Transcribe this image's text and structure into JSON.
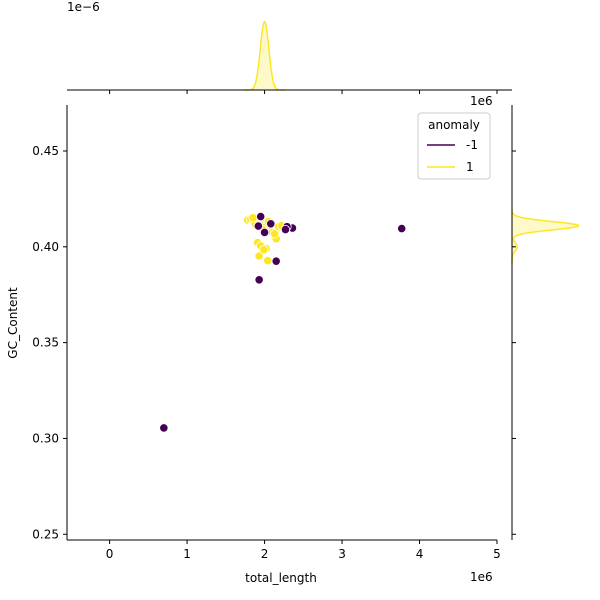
{
  "chart_data": {
    "type": "scatter",
    "kind": "jointplot",
    "xlabel": "total_length",
    "ylabel": "GC_Content",
    "x_offset_label": "1e6",
    "y_offset_label_top_margin": "1e−6",
    "x_offset_label_top_margin": "1e6",
    "xlim": [
      -0.55,
      5.0
    ],
    "ylim": [
      0.247,
      0.474
    ],
    "x_ticks": [
      0,
      1,
      2,
      3,
      4,
      5
    ],
    "x_tick_labels": [
      "0",
      "1",
      "2",
      "3",
      "4",
      "5"
    ],
    "y_ticks": [
      0.25,
      0.3,
      0.35,
      0.4,
      0.45
    ],
    "y_tick_labels": [
      "0.25",
      "0.30",
      "0.35",
      "0.40",
      "0.45"
    ],
    "legend": {
      "title": "anomaly",
      "placement": "top-right",
      "entries": [
        {
          "label": "-1",
          "color": "#440154"
        },
        {
          "label": "1",
          "color": "#fde725"
        }
      ]
    },
    "series": [
      {
        "name": "-1",
        "color": "#440154",
        "points": [
          [
            0.7,
            0.3055
          ],
          [
            1.93,
            0.3828
          ],
          [
            2.15,
            0.3925
          ],
          [
            3.77,
            0.4095
          ],
          [
            2.36,
            0.4098
          ],
          [
            2.29,
            0.4105
          ],
          [
            2.27,
            0.409
          ],
          [
            1.95,
            0.4158
          ],
          [
            1.92,
            0.4108
          ],
          [
            2.08,
            0.412
          ],
          [
            2.0,
            0.4075
          ]
        ]
      },
      {
        "name": "1",
        "color": "#fde725",
        "points": [
          [
            1.78,
            0.414
          ],
          [
            1.82,
            0.4145
          ],
          [
            1.86,
            0.4135
          ],
          [
            1.9,
            0.413
          ],
          [
            1.94,
            0.4128
          ],
          [
            1.97,
            0.4138
          ],
          [
            2.0,
            0.4125
          ],
          [
            2.03,
            0.4118
          ],
          [
            2.06,
            0.4112
          ],
          [
            2.09,
            0.4105
          ],
          [
            2.12,
            0.4098
          ],
          [
            2.18,
            0.4105
          ],
          [
            2.22,
            0.411
          ],
          [
            1.88,
            0.412
          ],
          [
            1.92,
            0.4112
          ],
          [
            1.96,
            0.4108
          ],
          [
            2.0,
            0.41
          ],
          [
            2.04,
            0.4095
          ],
          [
            2.07,
            0.4088
          ],
          [
            2.01,
            0.408
          ],
          [
            1.98,
            0.409
          ],
          [
            2.1,
            0.4075
          ],
          [
            2.15,
            0.4042
          ],
          [
            1.91,
            0.4022
          ],
          [
            1.95,
            0.4005
          ],
          [
            2.02,
            0.399
          ],
          [
            1.93,
            0.3952
          ],
          [
            2.04,
            0.3928
          ],
          [
            1.99,
            0.3985
          ],
          [
            2.13,
            0.4068
          ],
          [
            2.05,
            0.4132
          ],
          [
            1.85,
            0.4152
          ]
        ]
      }
    ],
    "marginal_x": {
      "color": "#fde725",
      "peak_location": 2.0,
      "bandwidth": 0.055,
      "relative_peak_height": 0.95
    },
    "marginal_y": {
      "color": "#fde725",
      "peak_location": 0.411,
      "bandwidth": 0.0022,
      "secondary_peak_location": 0.4,
      "secondary_weight": 0.08,
      "relative_peak_height": 0.95
    }
  }
}
